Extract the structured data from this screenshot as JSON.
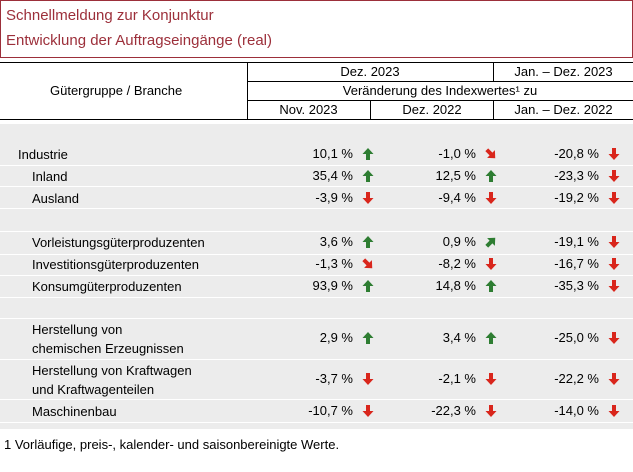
{
  "header": {
    "title": "Schnellmeldung zur Konjunktur",
    "subtitle": "Entwicklung der Auftragseingänge (real)"
  },
  "columns": {
    "row_header": "Gütergruppe / Branche",
    "group1": "Dez. 2023",
    "group2": "Jan. – Dez. 2023",
    "subheader": "Veränderung des Indexwertes¹ zu",
    "col1": "Nov. 2023",
    "col2": "Dez. 2022",
    "col3": "Jan. – Dez. 2022"
  },
  "colors": {
    "up": "#2e7d32",
    "down": "#d9261c",
    "accent": "#9c2f3a",
    "band": "#ececec"
  },
  "rows": [
    {
      "label": "Industrie",
      "v1": "10,1 %",
      "a1": "up",
      "v2": "-1,0 %",
      "a2": "down-right",
      "v3": "-20,8 %",
      "a3": "down"
    },
    {
      "label": "Inland",
      "v1": "35,4 %",
      "a1": "up",
      "v2": "12,5 %",
      "a2": "up",
      "v3": "-23,3 %",
      "a3": "down"
    },
    {
      "label": "Ausland",
      "v1": "-3,9 %",
      "a1": "down",
      "v2": "-9,4 %",
      "a2": "down",
      "v3": "-19,2 %",
      "a3": "down"
    },
    {
      "label": "Vorleistungsgüterproduzenten",
      "v1": "3,6 %",
      "a1": "up",
      "v2": "0,9 %",
      "a2": "up-right",
      "v3": "-19,1 %",
      "a3": "down"
    },
    {
      "label": "Investitionsgüterproduzenten",
      "v1": "-1,3 %",
      "a1": "down-right",
      "v2": "-8,2 %",
      "a2": "down",
      "v3": "-16,7 %",
      "a3": "down"
    },
    {
      "label": "Konsumgüterproduzenten",
      "v1": "93,9 %",
      "a1": "up",
      "v2": "14,8 %",
      "a2": "up",
      "v3": "-35,3 %",
      "a3": "down"
    },
    {
      "label": "Herstellung von",
      "label2": "chemischen Erzeugnissen",
      "v1": "2,9 %",
      "a1": "up",
      "v2": "3,4 %",
      "a2": "up",
      "v3": "-25,0 %",
      "a3": "down"
    },
    {
      "label": "Herstellung von Kraftwagen",
      "label2": "und Kraftwagenteilen",
      "v1": "-3,7 %",
      "a1": "down",
      "v2": "-2,1 %",
      "a2": "down",
      "v3": "-22,2 %",
      "a3": "down"
    },
    {
      "label": "Maschinenbau",
      "v1": "-10,7 %",
      "a1": "down",
      "v2": "-22,3 %",
      "a2": "down",
      "v3": "-14,0 %",
      "a3": "down"
    }
  ],
  "footnote": "1 Vorläufige, preis-, kalender- und saisonbereinigte Werte."
}
